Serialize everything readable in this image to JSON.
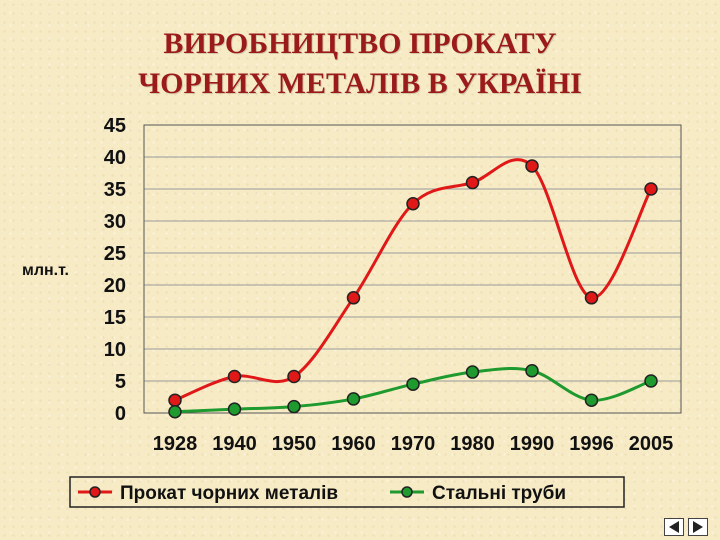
{
  "slide": {
    "title_line1": "ВИРОБНИЦТВО ПРОКАТУ",
    "title_line2": "ЧОРНИХ МЕТАЛІВ В УКРАЇНІ"
  },
  "chart_data": {
    "type": "line",
    "categories": [
      "1928",
      "1940",
      "1950",
      "1960",
      "1970",
      "1980",
      "1990",
      "1996",
      "2005"
    ],
    "series": [
      {
        "name": "Прокат чорних металів",
        "values": [
          2,
          5.7,
          5.7,
          18,
          32.7,
          36,
          38.6,
          18,
          35
        ],
        "color": "#e01818"
      },
      {
        "name": "Стальні труби",
        "values": [
          0.2,
          0.6,
          1,
          2.2,
          4.5,
          6.4,
          6.6,
          2,
          5
        ],
        "color": "#1e9a2e"
      }
    ],
    "ylabel": "млн.т.",
    "ylim": [
      0,
      45
    ],
    "yticks": [
      "0",
      "5",
      "10",
      "15",
      "20",
      "25",
      "30",
      "35",
      "40",
      "45"
    ],
    "grid": true,
    "legend": "bottom"
  },
  "nav": {
    "prev_icon": "triangle-left-icon",
    "next_icon": "triangle-right-icon"
  }
}
